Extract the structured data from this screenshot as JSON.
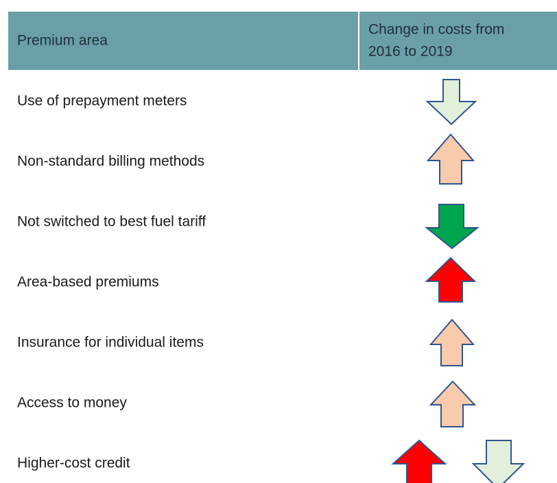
{
  "header": {
    "columns": [
      [
        "Premium area"
      ],
      [
        "Change in costs from",
        "2016 to 2019"
      ]
    ]
  },
  "rows": [
    "Use of prepayment meters",
    "Non-standard billing methods",
    "Not switched to best fuel tariff",
    "Area-based premiums",
    "Insurance for individual items",
    "Access to money",
    "Higher-cost credit"
  ]
}
